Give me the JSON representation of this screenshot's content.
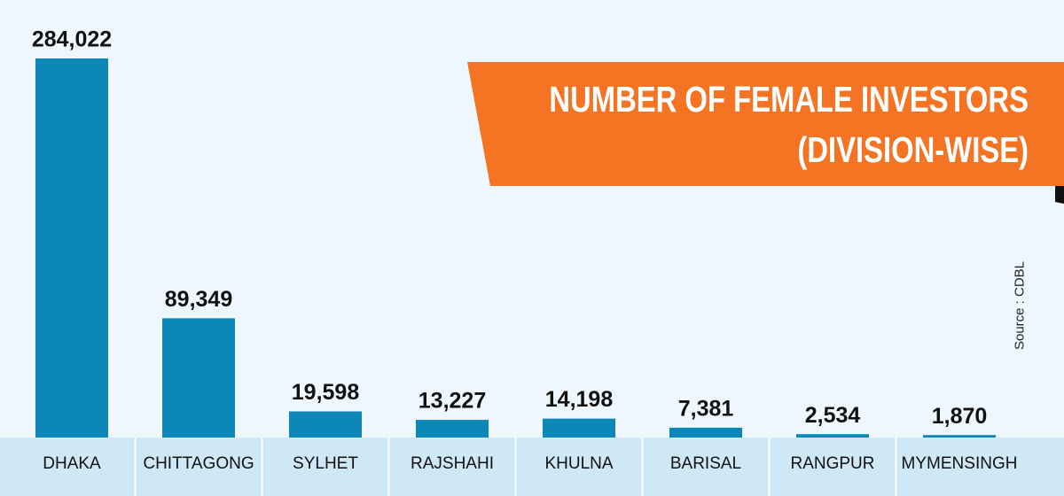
{
  "chart_data": {
    "type": "bar",
    "title": "NUMBER OF FEMALE INVESTORS (DIVISION-WISE)",
    "source": "Source : CDBL",
    "categories": [
      "DHAKA",
      "CHITTAGONG",
      "SYLHET",
      "RAJSHAHI",
      "KHULNA",
      "BARISAL",
      "RANGPUR",
      "MYMENSINGH"
    ],
    "values": [
      284022,
      89349,
      19598,
      13227,
      14198,
      7381,
      2534,
      1870
    ],
    "value_labels": [
      "284,022",
      "89,349",
      "19,598",
      "13,227",
      "14,198",
      "7,381",
      "2,534",
      "1,870"
    ],
    "color": "#0d86b8"
  }
}
